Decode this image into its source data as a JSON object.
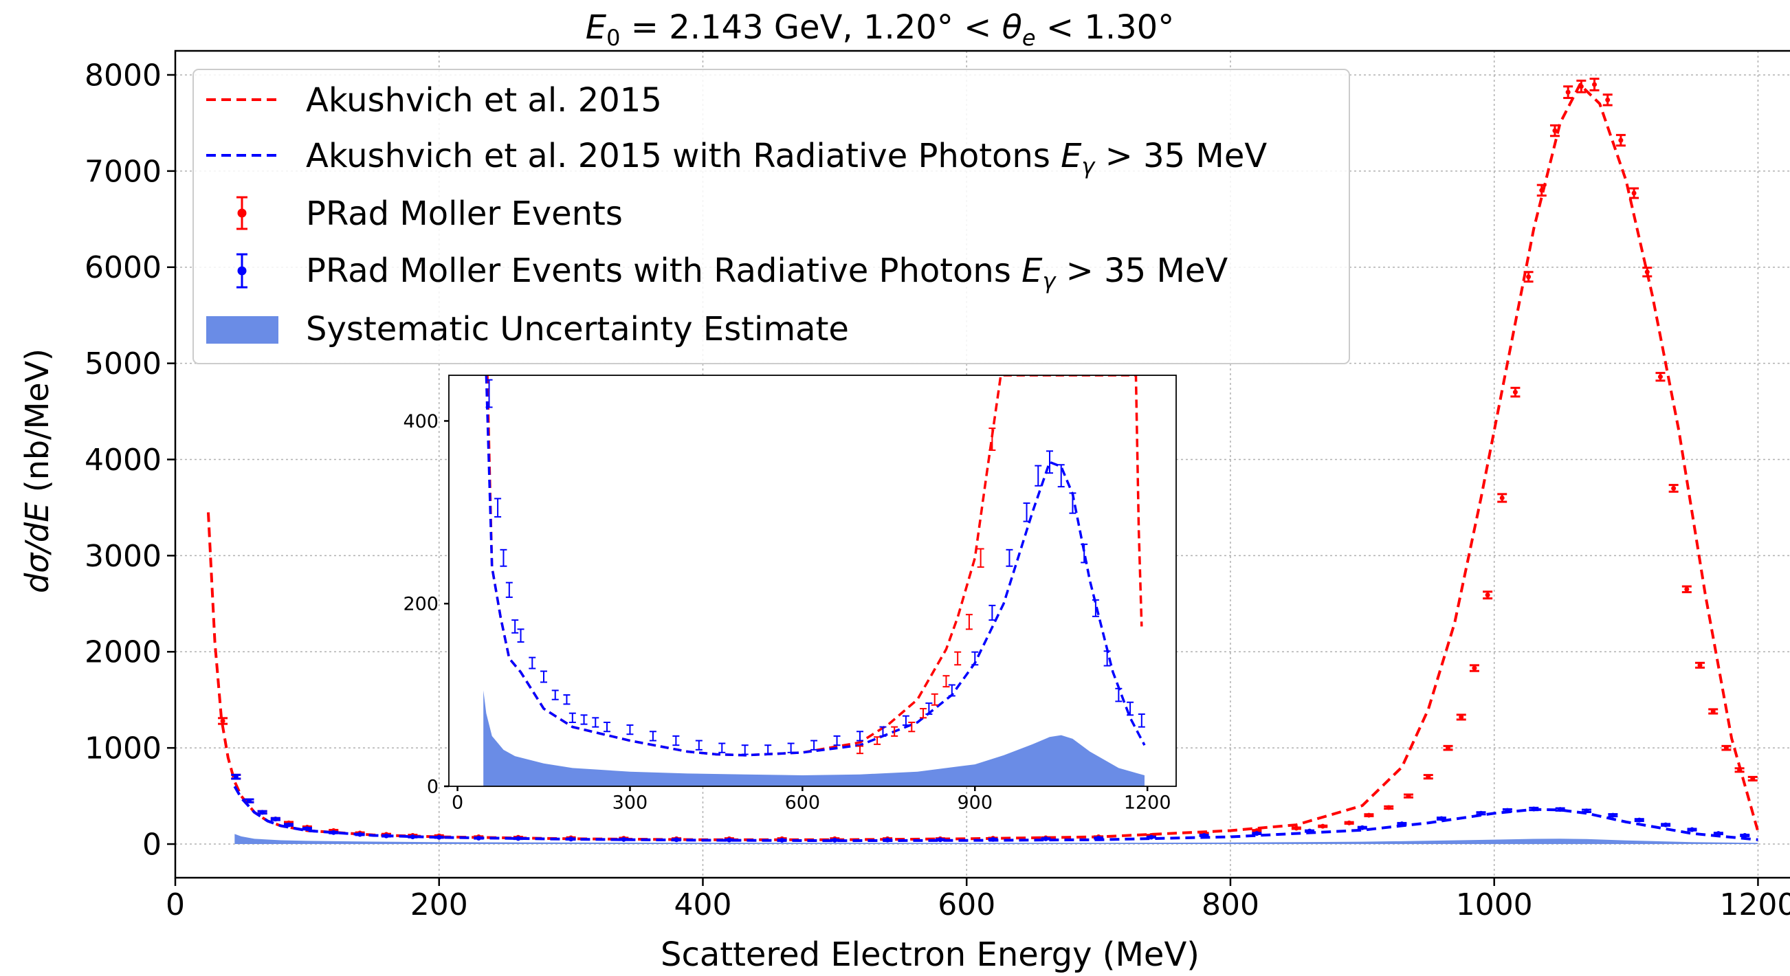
{
  "chart_data": [
    {
      "type": "line",
      "panel": "main",
      "title": "E₀ = 2.143 GeV, 1.20° < θₑ < 1.30°",
      "title_parts": {
        "e0": "E",
        "e0_sub": "0",
        "eq": " = 2.143 GeV, 1.20° < ",
        "theta": "θ",
        "theta_sub": "e",
        "tail": " < 1.30°"
      },
      "xlabel": "Scattered Electron Energy (MeV)",
      "ylabel": "dσ/dE (nb/MeV)",
      "ylabel_parts": {
        "math": "dσ/dE",
        "unit": " (nb/MeV)"
      },
      "xlim": [
        0,
        1230
      ],
      "ylim": [
        -350,
        8250
      ],
      "xticks": [
        0,
        200,
        400,
        600,
        800,
        1000,
        1200
      ],
      "yticks": [
        0,
        1000,
        2000,
        3000,
        4000,
        5000,
        6000,
        7000,
        8000
      ],
      "grid": true,
      "legend_position": "top-left",
      "legend": [
        {
          "label": "Akushvich et al. 2015",
          "style": "dashed-line",
          "color": "#ff0000"
        },
        {
          "label": "Akushvich et al. 2015 with Radiative Photons Eγ > 35 MeV",
          "label_main": "Akushvich et al. 2015 with Radiative Photons ",
          "label_math": "E",
          "label_sub": "γ",
          "label_tail": " > 35 MeV",
          "style": "dashed-line",
          "color": "#0000ff"
        },
        {
          "label": "PRad Moller Events",
          "style": "errorbar",
          "color": "#ff0000"
        },
        {
          "label": "PRad Moller Events with Radiative Photons Eγ > 35 MeV",
          "label_main": "PRad Moller Events with Radiative Photons ",
          "label_math": "E",
          "label_sub": "γ",
          "label_tail": " > 35 MeV",
          "style": "errorbar",
          "color": "#0000ff"
        },
        {
          "label": "Systematic Uncertainty Estimate",
          "style": "fill",
          "color": "#6a8ce6"
        }
      ],
      "series": [
        {
          "name": "Akushvich et al. 2015",
          "kind": "line",
          "color": "#ff0000",
          "x": [
            25,
            30,
            35,
            40,
            45,
            50,
            60,
            70,
            80,
            100,
            150,
            200,
            300,
            400,
            500,
            600,
            700,
            800,
            850,
            900,
            930,
            950,
            970,
            990,
            1010,
            1030,
            1050,
            1065,
            1080,
            1100,
            1120,
            1140,
            1160,
            1180,
            1200
          ],
          "y": [
            3450,
            2100,
            1300,
            900,
            650,
            500,
            330,
            240,
            190,
            140,
            95,
            75,
            55,
            45,
            45,
            55,
            75,
            140,
            200,
            400,
            800,
            1400,
            2300,
            3600,
            5000,
            6400,
            7500,
            7900,
            7700,
            6900,
            5700,
            4300,
            2600,
            1100,
            130
          ]
        },
        {
          "name": "Akushvich et al. 2015 with Radiative Photons Eγ > 35 MeV",
          "kind": "line",
          "color": "#0000ff",
          "x": [
            45,
            50,
            60,
            70,
            80,
            100,
            150,
            200,
            300,
            400,
            500,
            600,
            700,
            800,
            900,
            950,
            1000,
            1030,
            1050,
            1070,
            1100,
            1150,
            1200
          ],
          "y": [
            600,
            480,
            330,
            240,
            190,
            140,
            90,
            70,
            50,
            40,
            35,
            38,
            45,
            75,
            145,
            220,
            320,
            360,
            355,
            320,
            230,
            110,
            45
          ]
        },
        {
          "name": "PRad Moller Events",
          "kind": "errorbar",
          "color": "#ff0000",
          "x": [
            36,
            46,
            56,
            66,
            76,
            86,
            100,
            120,
            140,
            160,
            180,
            200,
            230,
            260,
            300,
            340,
            380,
            420,
            460,
            500,
            540,
            580,
            620,
            660,
            700,
            740,
            780,
            820,
            850,
            870,
            890,
            905,
            920,
            935,
            950,
            965,
            975,
            985,
            995,
            1006,
            1016,
            1026,
            1036,
            1046,
            1056,
            1066,
            1076,
            1086,
            1096,
            1106,
            1116,
            1126,
            1136,
            1146,
            1156,
            1166,
            1176,
            1186,
            1196
          ],
          "y": [
            1280,
            700,
            450,
            330,
            260,
            220,
            175,
            140,
            115,
            100,
            90,
            85,
            75,
            70,
            65,
            60,
            55,
            55,
            55,
            55,
            55,
            55,
            60,
            65,
            75,
            90,
            110,
            140,
            165,
            185,
            220,
            300,
            380,
            500,
            700,
            1000,
            1320,
            1830,
            2590,
            3600,
            4700,
            5900,
            6800,
            7420,
            7820,
            7880,
            7900,
            7740,
            7320,
            6770,
            5950,
            4860,
            3700,
            2650,
            1860,
            1380,
            1000,
            770,
            680
          ],
          "yerr": [
            30,
            20,
            15,
            12,
            10,
            10,
            8,
            7,
            6,
            6,
            6,
            6,
            5,
            5,
            5,
            5,
            5,
            5,
            5,
            5,
            5,
            5,
            5,
            5,
            5,
            5,
            6,
            6,
            7,
            7,
            8,
            10,
            12,
            15,
            18,
            20,
            25,
            30,
            35,
            40,
            45,
            50,
            55,
            55,
            60,
            60,
            60,
            55,
            55,
            50,
            45,
            40,
            35,
            30,
            25,
            22,
            20,
            18,
            18
          ]
        },
        {
          "name": "PRad Moller Events with Radiative Photons Eγ > 35 MeV",
          "kind": "errorbar",
          "color": "#0000ff",
          "x": [
            46,
            56,
            66,
            76,
            86,
            100,
            120,
            140,
            160,
            180,
            200,
            230,
            260,
            300,
            340,
            380,
            420,
            460,
            500,
            540,
            580,
            620,
            660,
            700,
            740,
            780,
            820,
            860,
            900,
            930,
            960,
            990,
            1010,
            1030,
            1050,
            1070,
            1090,
            1110,
            1130,
            1150,
            1170,
            1190
          ],
          "y": [
            700,
            450,
            330,
            260,
            200,
            160,
            120,
            100,
            85,
            75,
            70,
            62,
            58,
            52,
            48,
            45,
            42,
            40,
            40,
            42,
            45,
            48,
            55,
            62,
            72,
            90,
            110,
            135,
            170,
            210,
            265,
            320,
            350,
            365,
            360,
            345,
            300,
            250,
            200,
            150,
            110,
            90
          ],
          "yerr": [
            20,
            15,
            12,
            10,
            9,
            8,
            7,
            6,
            6,
            5,
            5,
            5,
            5,
            5,
            5,
            5,
            5,
            5,
            5,
            5,
            5,
            5,
            5,
            5,
            5,
            6,
            6,
            7,
            8,
            9,
            10,
            11,
            12,
            12,
            12,
            12,
            11,
            10,
            9,
            8,
            7,
            7
          ]
        },
        {
          "name": "Systematic Uncertainty Estimate",
          "kind": "fill",
          "color": "#6a8ce6",
          "x": [
            45,
            50,
            60,
            80,
            100,
            150,
            200,
            300,
            400,
            500,
            600,
            700,
            800,
            900,
            950,
            1000,
            1030,
            1050,
            1070,
            1100,
            1150,
            1200
          ],
          "y": [
            105,
            80,
            55,
            40,
            33,
            25,
            20,
            16,
            14,
            13,
            12,
            13,
            16,
            24,
            34,
            46,
            54,
            56,
            52,
            38,
            20,
            12
          ]
        }
      ]
    },
    {
      "type": "line",
      "panel": "inset",
      "xlim": [
        -15,
        1250
      ],
      "ylim": [
        0,
        450
      ],
      "xticks": [
        0,
        300,
        600,
        900,
        1200
      ],
      "yticks": [
        0,
        200,
        400
      ],
      "grid": false,
      "series": [
        {
          "name": "Akushvich et al. 2015",
          "kind": "line",
          "color": "#ff0000",
          "x": [
            52,
            60,
            75,
            90,
            110,
            150,
            200,
            300,
            400,
            450,
            500,
            600,
            700,
            750,
            800,
            850,
            870,
            900,
            920,
            945,
            1180,
            1185,
            1190
          ],
          "y": [
            450,
            240,
            185,
            140,
            125,
            85,
            65,
            50,
            38,
            35,
            34,
            37,
            48,
            68,
            95,
            150,
            185,
            250,
            340,
            450,
            450,
            280,
            175
          ]
        },
        {
          "name": "Akushvich et al. 2015 with Radiative Photons Eγ > 35 MeV",
          "kind": "line",
          "color": "#0000ff",
          "x": [
            50,
            60,
            75,
            90,
            110,
            150,
            200,
            300,
            400,
            450,
            500,
            600,
            700,
            800,
            860,
            900,
            950,
            1000,
            1030,
            1050,
            1070,
            1100,
            1140,
            1170,
            1195
          ],
          "y": [
            450,
            240,
            185,
            140,
            125,
            85,
            65,
            50,
            38,
            35,
            34,
            37,
            45,
            70,
            100,
            135,
            200,
            300,
            355,
            350,
            320,
            225,
            125,
            75,
            45
          ]
        },
        {
          "name": "PRad Moller Events",
          "kind": "errorbar",
          "color": "#ff0000",
          "x": [
            700,
            730,
            760,
            790,
            810,
            830,
            850,
            870,
            890,
            910,
            930
          ],
          "y": [
            40,
            50,
            60,
            65,
            80,
            95,
            115,
            140,
            180,
            250,
            380
          ],
          "yerr": [
            4,
            4,
            5,
            5,
            5,
            6,
            6,
            7,
            8,
            10,
            12
          ]
        },
        {
          "name": "PRad Moller Events with Radiative Photons Eγ > 35 MeV",
          "kind": "errorbar",
          "color": "#0000ff",
          "x": [
            55,
            70,
            80,
            90,
            100,
            110,
            130,
            150,
            170,
            190,
            200,
            220,
            240,
            260,
            300,
            340,
            380,
            420,
            460,
            500,
            540,
            580,
            620,
            660,
            700,
            740,
            780,
            820,
            860,
            900,
            930,
            960,
            990,
            1010,
            1030,
            1050,
            1070,
            1090,
            1110,
            1130,
            1150,
            1170,
            1190
          ],
          "y": [
            430,
            305,
            250,
            215,
            175,
            165,
            135,
            120,
            100,
            95,
            75,
            73,
            70,
            65,
            62,
            55,
            50,
            45,
            42,
            40,
            40,
            42,
            45,
            50,
            55,
            60,
            72,
            85,
            105,
            140,
            190,
            250,
            300,
            340,
            355,
            340,
            310,
            255,
            195,
            140,
            100,
            85,
            72
          ],
          "yerr": [
            15,
            10,
            9,
            8,
            7,
            7,
            6,
            6,
            5,
            5,
            5,
            5,
            5,
            5,
            5,
            5,
            5,
            5,
            5,
            5,
            5,
            5,
            5,
            5,
            5,
            5,
            5,
            6,
            6,
            7,
            8,
            9,
            10,
            11,
            12,
            12,
            11,
            10,
            9,
            8,
            7,
            7,
            7
          ]
        },
        {
          "name": "Systematic Uncertainty Estimate",
          "kind": "fill",
          "color": "#6a8ce6",
          "x": [
            45,
            50,
            60,
            80,
            100,
            150,
            200,
            300,
            400,
            500,
            600,
            700,
            800,
            900,
            950,
            1000,
            1030,
            1050,
            1070,
            1100,
            1150,
            1195
          ],
          "y": [
            105,
            80,
            55,
            40,
            33,
            25,
            20,
            16,
            14,
            13,
            12,
            13,
            16,
            24,
            34,
            46,
            54,
            56,
            52,
            38,
            20,
            12
          ]
        }
      ]
    }
  ]
}
